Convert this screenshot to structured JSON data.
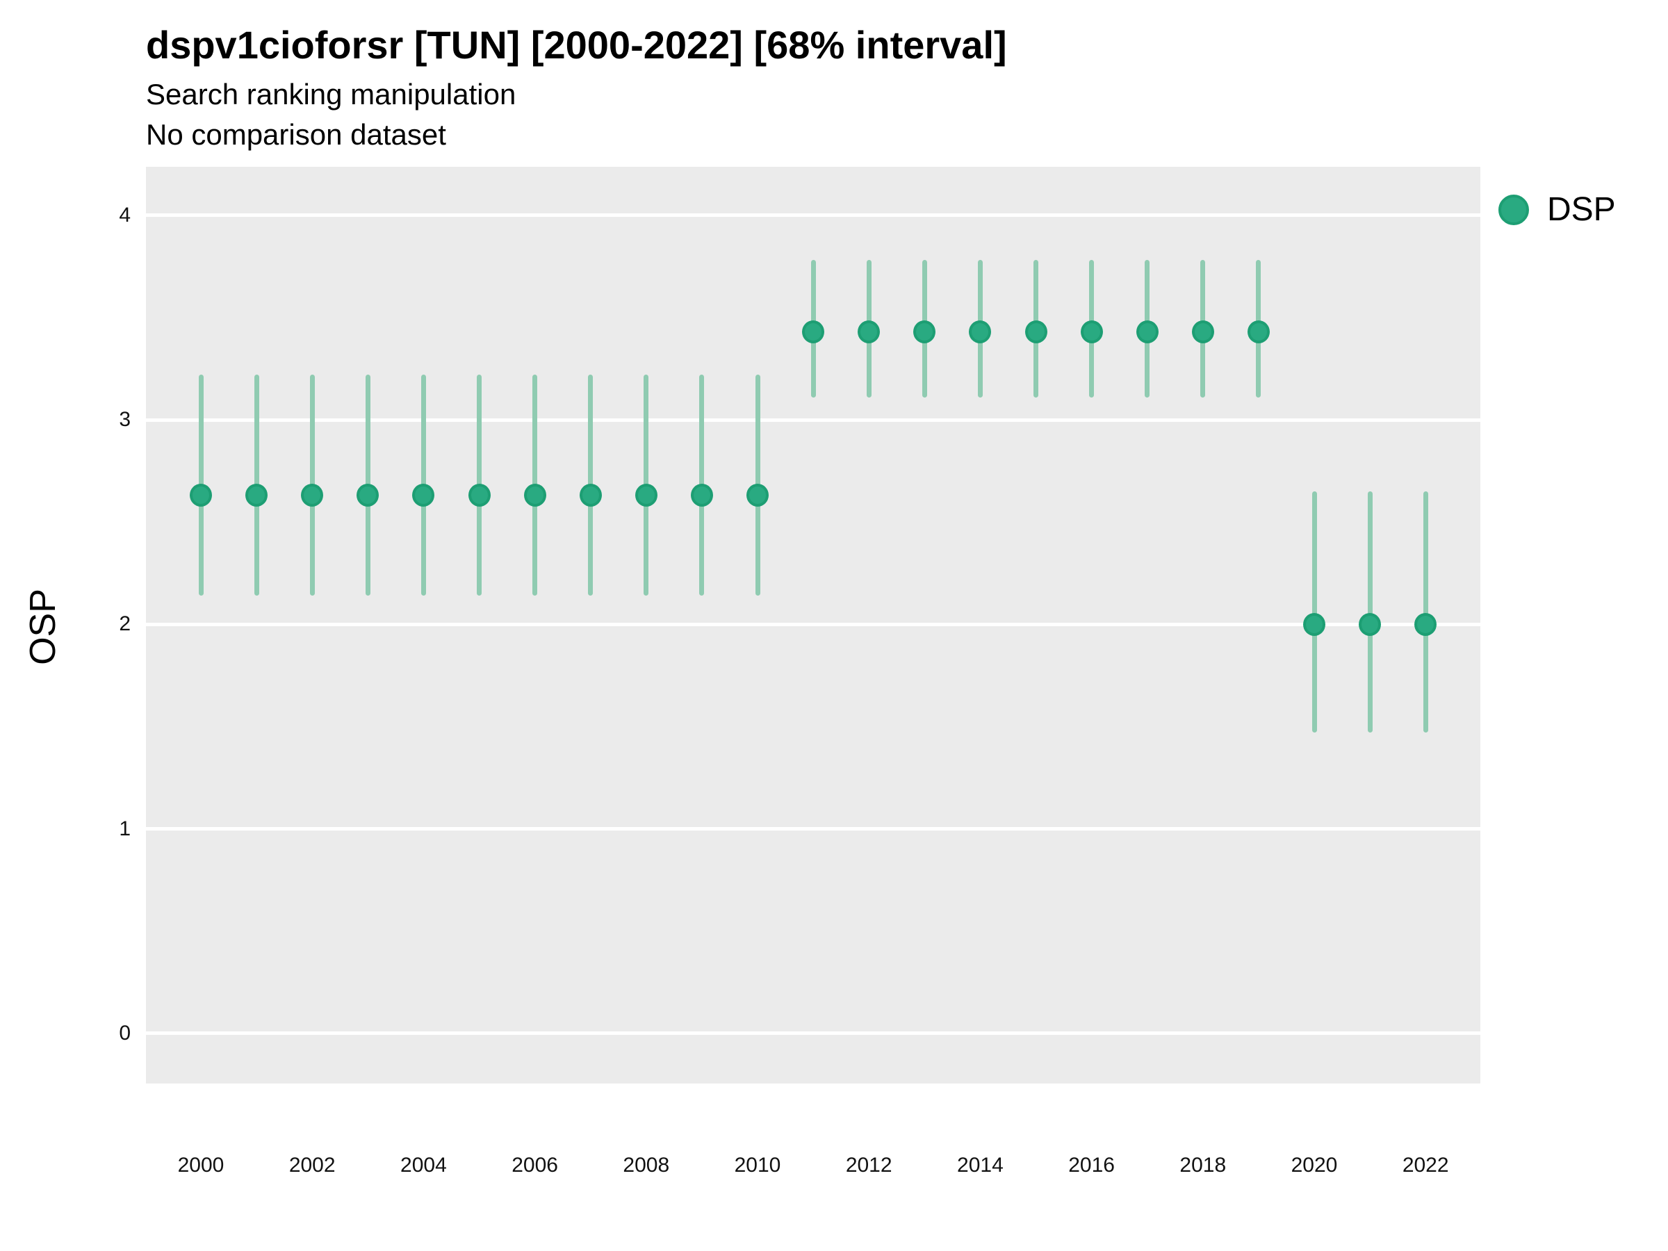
{
  "title": "dspv1cioforsr [TUN] [2000-2022] [68% interval]",
  "subtitle": "Search ranking manipulation",
  "note": "No comparison dataset",
  "legend": {
    "label": "DSP",
    "marker": "circle-icon"
  },
  "axes": {
    "y_label": "OSP",
    "x_label": "",
    "y_ticks": [
      "0",
      "1",
      "2",
      "3",
      "4"
    ],
    "x_ticks": [
      "2000",
      "2002",
      "2004",
      "2006",
      "2008",
      "2010",
      "2012",
      "2014",
      "2016",
      "2018",
      "2020",
      "2022"
    ]
  },
  "colors": {
    "page_background": "#FFFFFF",
    "panel_background": "#EBEBEB",
    "gridline": "#FFFFFF",
    "point_fill": "#29AA81",
    "point_ring": "#1D9E73",
    "interval_bar": "#8FCBB1",
    "text": "#000000"
  },
  "chart_data": {
    "type": "scatter",
    "title": "dspv1cioforsr [TUN] [2000-2022] [68% interval]",
    "subtitle": "Search ranking manipulation",
    "note": "No comparison dataset",
    "xlabel": "",
    "ylabel": "OSP",
    "interval": "68%",
    "grid": "horizontal major gridlines only, white on gray panel",
    "legend_position": "right-top",
    "xlim": [
      1999,
      2023
    ],
    "ylim": [
      -0.25,
      4.24
    ],
    "y_tick_values": [
      0,
      1,
      2,
      3,
      4
    ],
    "x_tick_values": [
      2000,
      2002,
      2004,
      2006,
      2008,
      2010,
      2012,
      2014,
      2016,
      2018,
      2020,
      2022
    ],
    "series": [
      {
        "name": "DSP",
        "x": [
          2000,
          2001,
          2002,
          2003,
          2004,
          2005,
          2006,
          2007,
          2008,
          2009,
          2010,
          2011,
          2012,
          2013,
          2014,
          2015,
          2016,
          2017,
          2018,
          2019,
          2020,
          2021,
          2022
        ],
        "y": [
          2.63,
          2.63,
          2.63,
          2.63,
          2.63,
          2.63,
          2.63,
          2.63,
          2.63,
          2.63,
          2.63,
          3.43,
          3.43,
          3.43,
          3.43,
          3.43,
          3.43,
          3.43,
          3.43,
          3.43,
          2.0,
          2.0,
          2.0
        ],
        "y_lo": [
          2.14,
          2.14,
          2.14,
          2.14,
          2.14,
          2.14,
          2.14,
          2.14,
          2.14,
          2.14,
          2.14,
          3.11,
          3.11,
          3.11,
          3.11,
          3.11,
          3.11,
          3.11,
          3.11,
          3.11,
          1.47,
          1.47,
          1.47
        ],
        "y_hi": [
          3.22,
          3.22,
          3.22,
          3.22,
          3.22,
          3.22,
          3.22,
          3.22,
          3.22,
          3.22,
          3.22,
          3.78,
          3.78,
          3.78,
          3.78,
          3.78,
          3.78,
          3.78,
          3.78,
          3.78,
          2.65,
          2.65,
          2.65
        ]
      }
    ]
  }
}
